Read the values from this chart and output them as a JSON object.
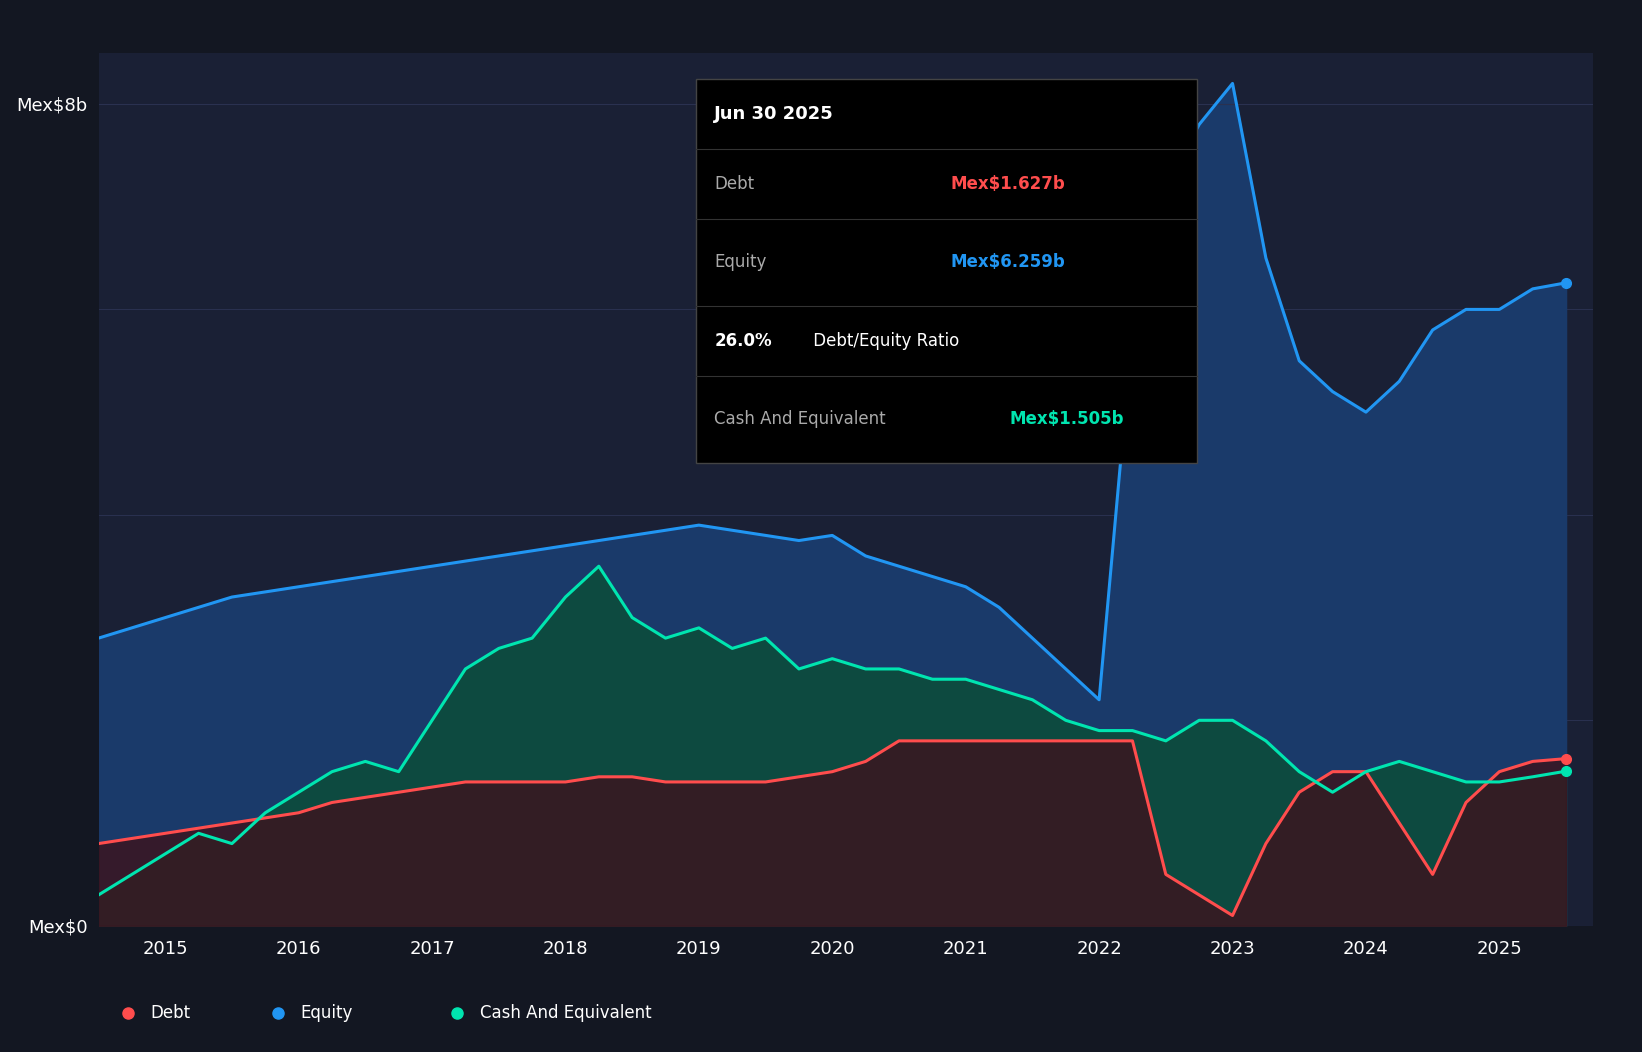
{
  "bg_color": "#131722",
  "plot_bg_color": "#1a2035",
  "grid_color": "#2a3150",
  "y_label_8b": "Mex$8b",
  "y_label_0": "Mex$0",
  "x_ticks": [
    "2015",
    "2016",
    "2017",
    "2018",
    "2019",
    "2020",
    "2021",
    "2022",
    "2023",
    "2024",
    "2025"
  ],
  "legend_items": [
    {
      "label": "Debt",
      "color": "#ff4d4d"
    },
    {
      "label": "Equity",
      "color": "#2196f3"
    },
    {
      "label": "Cash And Equivalent",
      "color": "#00e5b0"
    }
  ],
  "tooltip": {
    "date": "Jun 30 2025",
    "debt_label": "Debt",
    "debt_value": "Mex$1.627b",
    "debt_color": "#ff4d4d",
    "equity_label": "Equity",
    "equity_value": "Mex$6.259b",
    "equity_color": "#2196f3",
    "ratio_bold": "26.0%",
    "ratio_rest": " Debt/Equity Ratio",
    "cash_label": "Cash And Equivalent",
    "cash_value": "Mex$1.505b",
    "cash_color": "#00e5b0"
  },
  "equity_color": "#2196f3",
  "debt_color": "#ff4d4d",
  "cash_color": "#00e5b0",
  "equity_fill_color": "#1a3a6a",
  "cash_fill_color": "#0d4a40",
  "ylim": [
    0,
    8.5
  ],
  "xlim_start": 2014.5,
  "xlim_end": 2025.7,
  "time_points": [
    2014.5,
    2014.75,
    2015.0,
    2015.25,
    2015.5,
    2015.75,
    2016.0,
    2016.25,
    2016.5,
    2016.75,
    2017.0,
    2017.25,
    2017.5,
    2017.75,
    2018.0,
    2018.25,
    2018.5,
    2018.75,
    2019.0,
    2019.25,
    2019.5,
    2019.75,
    2020.0,
    2020.25,
    2020.5,
    2020.75,
    2021.0,
    2021.25,
    2021.5,
    2021.75,
    2022.0,
    2022.25,
    2022.5,
    2022.75,
    2023.0,
    2023.25,
    2023.5,
    2023.75,
    2024.0,
    2024.25,
    2024.5,
    2024.75,
    2025.0,
    2025.25,
    2025.5
  ],
  "equity": [
    2.8,
    2.9,
    3.0,
    3.1,
    3.2,
    3.25,
    3.3,
    3.35,
    3.4,
    3.45,
    3.5,
    3.55,
    3.6,
    3.65,
    3.7,
    3.75,
    3.8,
    3.85,
    3.9,
    3.85,
    3.8,
    3.75,
    3.8,
    3.6,
    3.5,
    3.4,
    3.3,
    3.1,
    2.8,
    2.5,
    2.2,
    5.8,
    7.2,
    7.8,
    8.2,
    6.5,
    5.5,
    5.2,
    5.0,
    5.3,
    5.8,
    6.0,
    6.0,
    6.2,
    6.259
  ],
  "debt": [
    0.8,
    0.85,
    0.9,
    0.95,
    1.0,
    1.05,
    1.1,
    1.2,
    1.25,
    1.3,
    1.35,
    1.4,
    1.4,
    1.4,
    1.4,
    1.45,
    1.45,
    1.4,
    1.4,
    1.4,
    1.4,
    1.45,
    1.5,
    1.6,
    1.8,
    1.8,
    1.8,
    1.8,
    1.8,
    1.8,
    1.8,
    1.8,
    0.5,
    0.3,
    0.1,
    0.8,
    1.3,
    1.5,
    1.5,
    1.0,
    0.5,
    1.2,
    1.5,
    1.6,
    1.627
  ],
  "cash": [
    0.3,
    0.5,
    0.7,
    0.9,
    0.8,
    1.1,
    1.3,
    1.5,
    1.6,
    1.5,
    2.0,
    2.5,
    2.7,
    2.8,
    3.2,
    3.5,
    3.0,
    2.8,
    2.9,
    2.7,
    2.8,
    2.5,
    2.6,
    2.5,
    2.5,
    2.4,
    2.4,
    2.3,
    2.2,
    2.0,
    1.9,
    1.9,
    1.8,
    2.0,
    2.0,
    1.8,
    1.5,
    1.3,
    1.5,
    1.6,
    1.5,
    1.4,
    1.4,
    1.45,
    1.505
  ]
}
